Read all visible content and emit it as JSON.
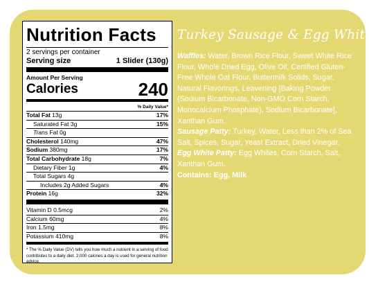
{
  "nutrition": {
    "title": "Nutrition Facts",
    "servings": "2 servings per container",
    "serving_size_label": "Serving size",
    "serving_size": "1 Slider (130g)",
    "amount_per_serving": "Amount Per Serving",
    "calories_label": "Calories",
    "calories": 240,
    "dv_header": "% Daily Value*",
    "rows": [
      {
        "name": "Total Fat",
        "amount": "13g",
        "dv": "17%",
        "bold": true,
        "indent": 0
      },
      {
        "name": "Saturated Fat",
        "amount": "3g",
        "dv": "15%",
        "indent": 1
      },
      {
        "italic": "Trans",
        "name": "Fat",
        "amount": "0g",
        "indent": 1
      },
      {
        "name": "Cholesterol",
        "amount": "140mg",
        "dv": "47%",
        "bold": true,
        "indent": 0
      },
      {
        "name": "Sodium",
        "amount": "380mg",
        "dv": "17%",
        "bold": true,
        "indent": 0
      },
      {
        "name": "Total Carbohydrate",
        "amount": "18g",
        "dv": "7%",
        "bold": true,
        "indent": 0
      },
      {
        "name": "Dietary Fiber",
        "amount": "1g",
        "dv": "4%",
        "indent": 1
      },
      {
        "name": "Total Sugars",
        "amount": "4g",
        "indent": 1
      },
      {
        "name": "Includes",
        "amount": "2g Added Sugars",
        "dv": "4%",
        "indent": 2
      },
      {
        "name": "Protein",
        "amount": "16g",
        "dv": "32%",
        "bold": true,
        "indent": 0
      }
    ],
    "vitamins": [
      {
        "name": "Vitamin D",
        "amount": "0.5mcg",
        "dv": "2%"
      },
      {
        "name": "Calcium",
        "amount": "60mg",
        "dv": "4%"
      },
      {
        "name": "Iron",
        "amount": "1.5mg",
        "dv": "8%"
      },
      {
        "name": "Potassium",
        "amount": "410mg",
        "dv": "8%"
      }
    ],
    "footnote": "* The % Daily Value (DV) tells you how much a nutrient in a serving of food contributes to a daily diet. 2,000 calories a day is used for general nutrition advice."
  },
  "product": {
    "title": "Turkey Sausage & Egg White",
    "ingredients": [
      {
        "label": "Waffles:",
        "text": "Water, Brown Rice Flour, Sweet White Rice Flour, Whole Dried Egg, Olive Oil, Certified Gluten-Free Whole Oat Flour, Buttermilk Solids, Sugar, Natural Flavorings, Leavening [Baking Powder (Sodium Bicarbonate, Non-GMO Corn Starch, Monocalcium Phosphate), Sodium Bicarbonate], Xanthan Gum."
      },
      {
        "label": "Sausage Patty:",
        "text": "Turkey, Water, Less than 2% of Sea Salt, Spices, Sugar, Yeast Extract, Dried Vinegar."
      },
      {
        "label": "Egg White Patty:",
        "text": "Egg Whites, Corn Starch, Salt, Xanthan Gum."
      }
    ],
    "contains": "Contains: Egg, Milk"
  }
}
